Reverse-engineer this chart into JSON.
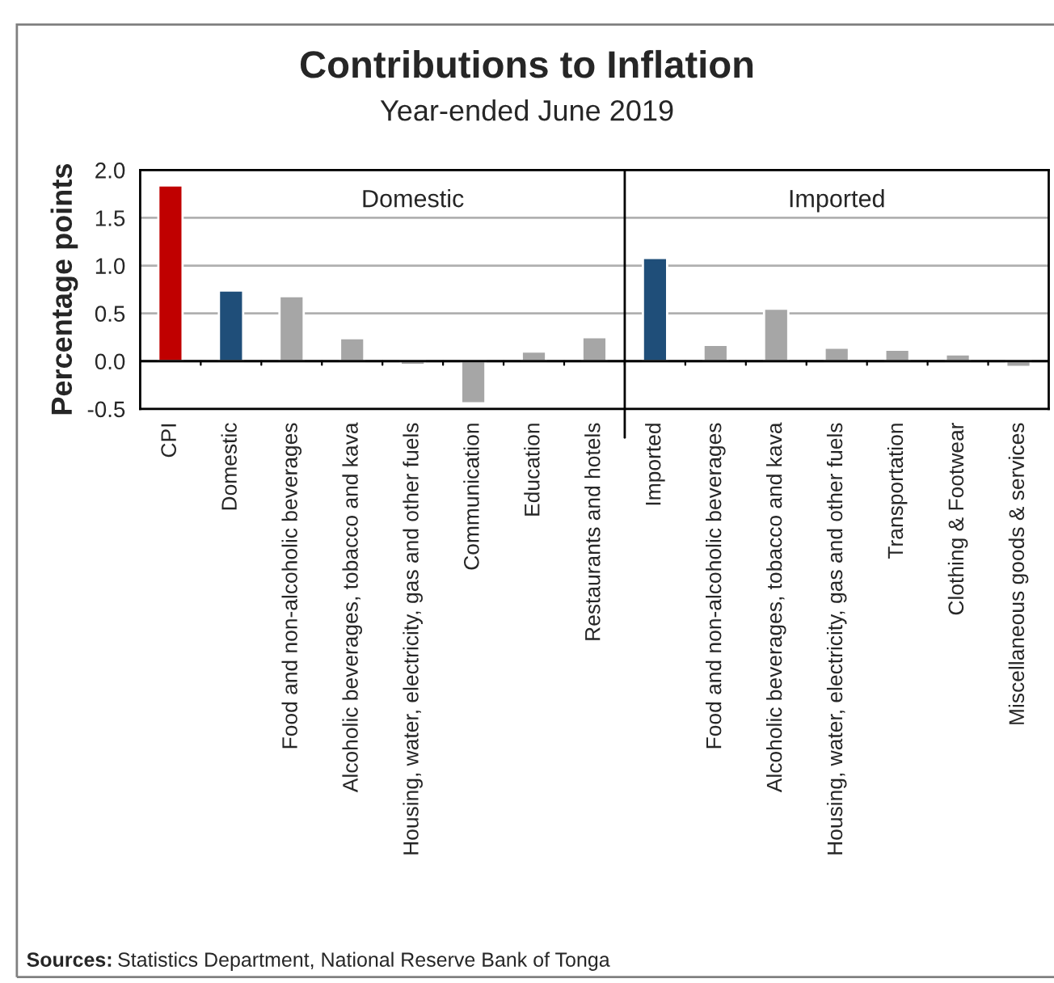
{
  "chart_data": {
    "type": "bar",
    "title": "Contributions to Inflation",
    "subtitle": "Year-ended June 2019",
    "ylabel": "Percentage points",
    "categories": [
      "CPI",
      "Domestic",
      "Food and non-alcoholic beverages",
      "Alcoholic beverages, tobacco and kava",
      "Housing, water, electricity, gas and other fuels",
      "Communication",
      "Education",
      "Restaurants and hotels",
      "Imported",
      "Food and non-alcoholic beverages",
      "Alcoholic beverages, tobacco and kava",
      "Housing, water, electricity, gas and other fuels",
      "Transportation",
      "Clothing & Footwear",
      "Miscellaneous goods & services"
    ],
    "values": [
      1.84,
      0.74,
      0.68,
      0.24,
      -0.04,
      -0.44,
      0.1,
      0.25,
      1.08,
      0.17,
      0.55,
      0.14,
      0.12,
      0.07,
      -0.06
    ],
    "colors": [
      "#c00000",
      "#1f4e79",
      "#a6a6a6",
      "#a6a6a6",
      "#a6a6a6",
      "#a6a6a6",
      "#a6a6a6",
      "#a6a6a6",
      "#1f4e79",
      "#a6a6a6",
      "#a6a6a6",
      "#a6a6a6",
      "#a6a6a6",
      "#a6a6a6",
      "#a6a6a6"
    ],
    "ylim": [
      -0.5,
      2.0
    ],
    "yticks": [
      {
        "value": -0.5,
        "label": "-0.5"
      },
      {
        "value": 0,
        "label": "0.0"
      },
      {
        "value": 0.5,
        "label": "0.5"
      },
      {
        "value": 1.0,
        "label": "1.0"
      },
      {
        "value": 1.5,
        "label": "1.5"
      },
      {
        "value": 2.0,
        "label": "2.0"
      }
    ],
    "grid": "y",
    "annotations": [
      "Domestic",
      "Imported",
      "Sources: Statistics Department, National Reserve Bank of Tonga"
    ]
  }
}
